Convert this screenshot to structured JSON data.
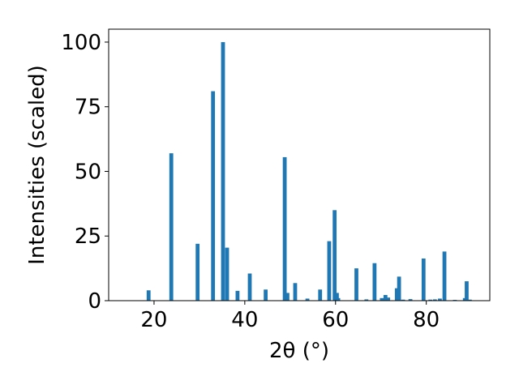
{
  "chart_data": {
    "type": "bar",
    "xlabel": "2θ (°)",
    "ylabel": "Intensities (scaled)",
    "xlim": [
      10,
      94
    ],
    "ylim": [
      0,
      105
    ],
    "xticks": [
      20,
      40,
      60,
      80
    ],
    "yticks": [
      0,
      25,
      50,
      75,
      100
    ],
    "bar_width": 0.85,
    "bar_color": "#1f77b4",
    "grid": false,
    "x": [
      18.8,
      23.8,
      29.6,
      33.0,
      35.2,
      36.1,
      38.4,
      41.1,
      44.6,
      48.8,
      49.4,
      51.1,
      53.8,
      56.6,
      58.6,
      59.8,
      60.3,
      60.6,
      64.6,
      66.8,
      68.6,
      70.2,
      71.0,
      71.6,
      73.5,
      74.0,
      74.9,
      76.5,
      79.4,
      80.9,
      81.9,
      83.0,
      84.0,
      86.3,
      88.5,
      88.9,
      89.6
    ],
    "values": [
      4.0,
      57.0,
      22.0,
      81.0,
      100.0,
      20.5,
      3.8,
      10.5,
      4.3,
      55.5,
      3.0,
      6.8,
      0.8,
      4.3,
      23.0,
      35.0,
      3.0,
      1.0,
      12.5,
      0.5,
      14.5,
      1.0,
      2.2,
      1.2,
      4.8,
      9.3,
      0.4,
      0.6,
      16.3,
      0.4,
      0.5,
      0.8,
      19.0,
      0.3,
      1.0,
      7.5,
      0.4
    ]
  }
}
